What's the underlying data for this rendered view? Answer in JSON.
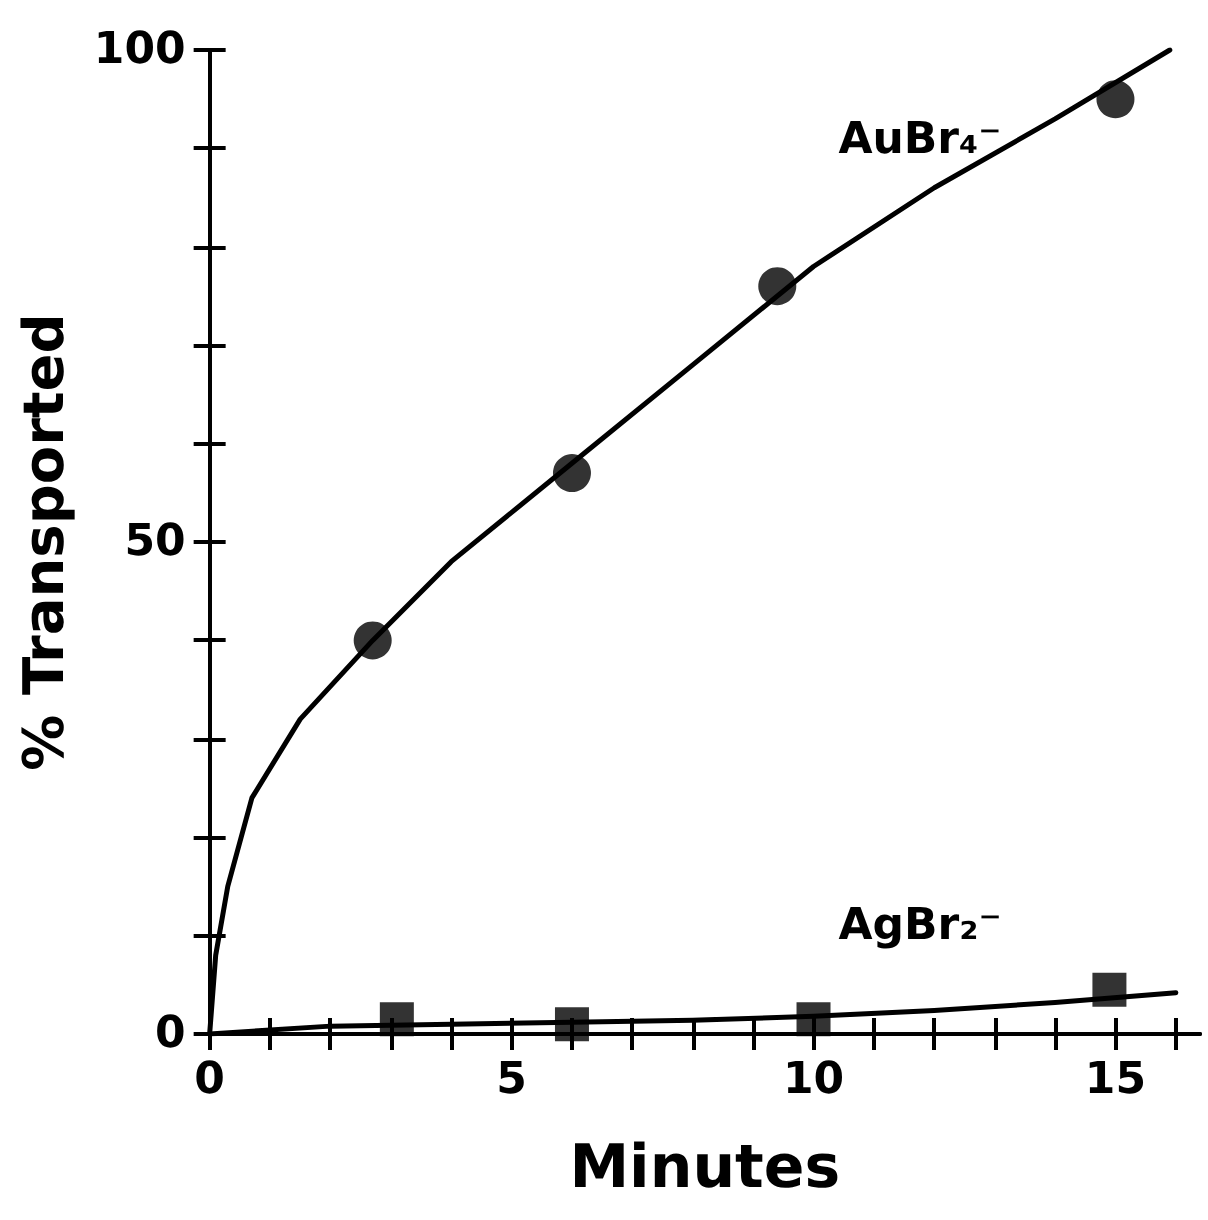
{
  "chart_data": {
    "type": "scatter",
    "xlabel": "Minutes",
    "ylabel": "% Transported",
    "xlim": [
      0,
      16.4
    ],
    "ylim": [
      0,
      100
    ],
    "xticks": [
      0,
      {
        "value": 1,
        "label": null
      },
      {
        "value": 2,
        "label": null
      },
      {
        "value": 3,
        "label": null
      },
      {
        "value": 4,
        "label": null
      },
      5,
      {
        "value": 6,
        "label": null
      },
      {
        "value": 7,
        "label": null
      },
      {
        "value": 8,
        "label": null
      },
      {
        "value": 9,
        "label": null
      },
      10,
      {
        "value": 11,
        "label": null
      },
      {
        "value": 12,
        "label": null
      },
      {
        "value": 13,
        "label": null
      },
      {
        "value": 14,
        "label": null
      },
      15,
      {
        "value": 16,
        "label": null
      }
    ],
    "yticks": [
      0,
      {
        "value": 10,
        "label": null
      },
      {
        "value": 20,
        "label": null
      },
      {
        "value": 30,
        "label": null
      },
      {
        "value": 40,
        "label": null
      },
      50,
      {
        "value": 60,
        "label": null
      },
      {
        "value": 70,
        "label": null
      },
      {
        "value": 80,
        "label": null
      },
      {
        "value": 90,
        "label": null
      },
      100
    ],
    "grid": false,
    "series": [
      {
        "marker": "circle",
        "color": "#000000",
        "x": [
          2.7,
          6.0,
          9.4,
          15.0
        ],
        "values": [
          40,
          57,
          76,
          95
        ]
      },
      {
        "type": "line",
        "marker": "none",
        "color": "#000000",
        "x": [
          0,
          0.1,
          0.3,
          0.7,
          1.5,
          2.7,
          4,
          6,
          8,
          10,
          12,
          14,
          15.9
        ],
        "values": [
          0,
          8,
          15,
          24,
          32,
          40,
          48,
          58,
          68,
          78,
          86,
          93,
          100
        ]
      },
      {
        "marker": "square",
        "color": "#000000",
        "x": [
          3.1,
          6.0,
          10.0,
          14.9
        ],
        "values": [
          1.5,
          1,
          1.5,
          4.5
        ]
      },
      {
        "type": "line",
        "marker": "none",
        "color": "#000000",
        "x": [
          0,
          2,
          4,
          6,
          8,
          10,
          12,
          14,
          16
        ],
        "values": [
          0,
          0.8,
          1,
          1.2,
          1.4,
          1.8,
          2.4,
          3.2,
          4.2
        ]
      }
    ],
    "annotations": [
      "AuBr₄⁻",
      "AgBr₂⁻"
    ]
  }
}
